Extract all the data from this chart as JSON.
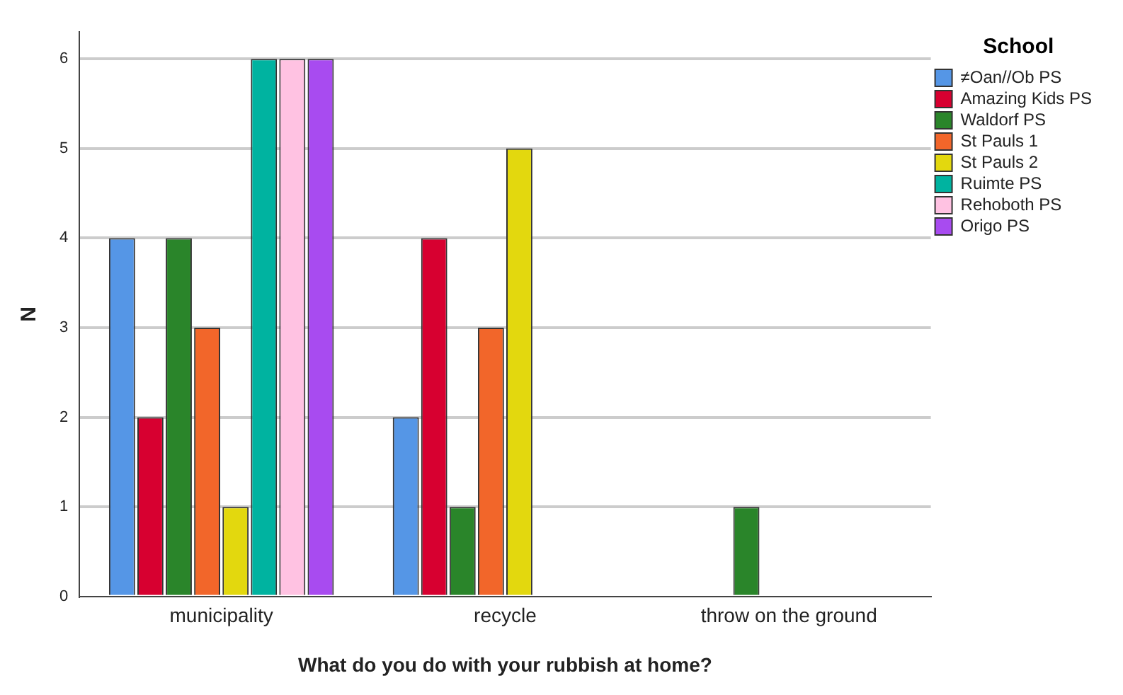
{
  "chart_data": {
    "type": "bar",
    "xlabel": "What do you do with your rubbish at home?",
    "ylabel": "N",
    "legend_title": "School",
    "categories": [
      "municipality",
      "recycle",
      "throw on the ground"
    ],
    "series": [
      {
        "name": "≠Oan//Ob PS",
        "color": "#5596e6",
        "values": [
          4,
          2,
          null
        ]
      },
      {
        "name": "Amazing Kids PS",
        "color": "#d70030",
        "values": [
          2,
          4,
          null
        ]
      },
      {
        "name": "Waldorf PS",
        "color": "#2a852a",
        "values": [
          4,
          1,
          1
        ]
      },
      {
        "name": "St Pauls 1",
        "color": "#f2662a",
        "values": [
          3,
          3,
          null
        ]
      },
      {
        "name": "St Pauls 2",
        "color": "#e3d80e",
        "values": [
          1,
          5,
          null
        ]
      },
      {
        "name": "Ruimte PS",
        "color": "#00b3a0",
        "values": [
          6,
          null,
          null
        ]
      },
      {
        "name": "Rehoboth PS",
        "color": "#ffc2e2",
        "values": [
          6,
          null,
          null
        ]
      },
      {
        "name": "Origo PS",
        "color": "#a84bf0",
        "values": [
          6,
          null,
          null
        ]
      }
    ],
    "ylim": [
      0,
      6.3
    ],
    "yticks": [
      0,
      1,
      2,
      3,
      4,
      5,
      6
    ],
    "grid": "y",
    "legend": "top right"
  }
}
